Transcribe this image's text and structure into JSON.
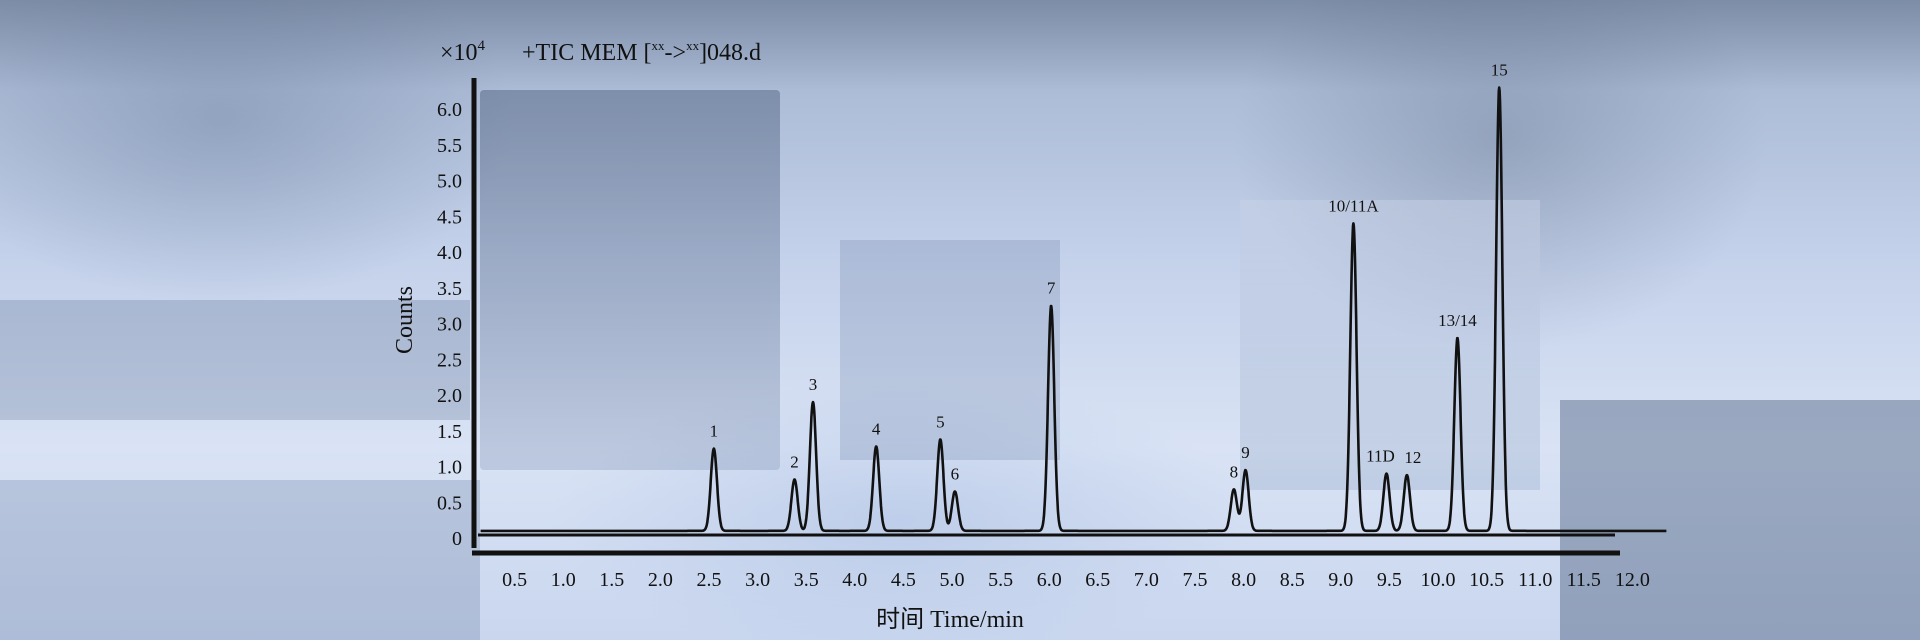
{
  "chart_data": {
    "type": "line",
    "title_prefix": "×10",
    "title_exponent": "4",
    "title": "+TIC MEM [xx->xx]048.d",
    "title_main": "+TIC MEM [",
    "title_sup1": "xx",
    "title_arrow": "->",
    "title_sup2": "xx",
    "title_end": "]048.d",
    "xlabel": "时间 Time/min",
    "ylabel": "Counts",
    "xlim": [
      0,
      12.4
    ],
    "ylim": [
      0,
      6.3
    ],
    "x_ticks": [
      "0.5",
      "1.0",
      "1.5",
      "2.0",
      "2.5",
      "3.0",
      "3.5",
      "4.0",
      "4.5",
      "5.0",
      "5.5",
      "6.0",
      "6.5",
      "7.0",
      "7.5",
      "8.0",
      "8.5",
      "9.0",
      "9.5",
      "10.0",
      "10.5",
      "11.0",
      "11.5",
      "12.0"
    ],
    "y_ticks": [
      "0",
      "0.5",
      "1.0",
      "1.5",
      "2.0",
      "2.5",
      "3.0",
      "3.5",
      "4.0",
      "4.5",
      "5.0",
      "5.5",
      "6.0"
    ],
    "baseline": 0.1,
    "peaks": [
      {
        "label": "1",
        "x": 2.55,
        "y": 1.25
      },
      {
        "label": "2",
        "x": 3.38,
        "y": 0.82
      },
      {
        "label": "3",
        "x": 3.57,
        "y": 1.9
      },
      {
        "label": "4",
        "x": 4.22,
        "y": 1.28
      },
      {
        "label": "5",
        "x": 4.88,
        "y": 1.38
      },
      {
        "label": "6",
        "x": 5.03,
        "y": 0.65
      },
      {
        "label": "7",
        "x": 6.02,
        "y": 3.25
      },
      {
        "label": "8",
        "x": 7.9,
        "y": 0.68
      },
      {
        "label": "9",
        "x": 8.02,
        "y": 0.95
      },
      {
        "label": "10/11A",
        "x": 9.13,
        "y": 4.4
      },
      {
        "label": "11D",
        "x": 9.47,
        "y": 0.9
      },
      {
        "label": "12",
        "x": 9.68,
        "y": 0.88
      },
      {
        "label": "13/14",
        "x": 10.2,
        "y": 2.8
      },
      {
        "label": "15",
        "x": 10.63,
        "y": 6.3
      }
    ]
  }
}
